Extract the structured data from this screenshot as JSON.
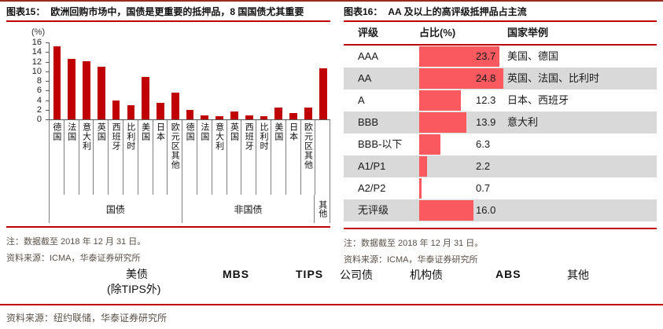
{
  "figure15": {
    "label": "图表15：",
    "title": "欧洲回购市场中，国债是更重要的抵押品，8 国国债尤其重要",
    "unit_label": "(%)",
    "note": "注：数据截至 2018 年 12 月 31 日。",
    "source": "资料来源：ICMA，华泰证券研究所"
  },
  "figure16": {
    "label": "图表16：",
    "title": "AA 及以上的高评级抵押品占主流",
    "headers": [
      "评级",
      "占比(%)",
      "国家举例"
    ],
    "note": "注：数据截至 2018 年 12 月 31 日。",
    "source": "资料来源：ICMA，华泰证券研究所"
  },
  "bottom_figure": {
    "axis_labels": [
      "美债",
      "(除TIPS外)",
      "MBS",
      "TIPS",
      "公司债",
      "机构债",
      "ABS",
      "其他"
    ],
    "source": "资料来源：纽约联储，华泰证券研究所"
  },
  "colors": {
    "accent_red": "#c00000",
    "left_bar": "#c00000",
    "table_bar": "#fa5a5f",
    "alt_row": "#d9d9d9"
  },
  "chart_data": [
    {
      "type": "bar",
      "title": "欧洲回购市场中，国债是更重要的抵押品，8国国债尤其重要",
      "ylabel": "(%)",
      "ylim": [
        0,
        16
      ],
      "ytick_step": 2,
      "grid": false,
      "bar_color": "#c00000",
      "groups": [
        {
          "label": "国债",
          "categories": [
            "德国",
            "法国",
            "意大利",
            "英国",
            "西班牙",
            "比利时",
            "美国",
            "日本",
            "欧元区其他"
          ],
          "values": [
            15.2,
            12.6,
            12.1,
            11.0,
            4.0,
            3.0,
            8.8,
            3.4,
            5.5
          ]
        },
        {
          "label": "非国债",
          "categories": [
            "德国",
            "法国",
            "意大利",
            "英国",
            "西班牙",
            "比利时",
            "美国",
            "日本",
            "欧元区其他"
          ],
          "values": [
            1.9,
            0.9,
            0.7,
            1.7,
            0.9,
            0.6,
            2.4,
            1.3,
            2.4
          ]
        },
        {
          "label": "其他",
          "categories": [
            "其他"
          ],
          "values": [
            10.6
          ],
          "vertical_group_label": true,
          "hide_category_labels": true
        }
      ]
    },
    {
      "type": "bar",
      "title": "AA及以上的高评级抵押品占主流",
      "orientation": "horizontal",
      "xlim": [
        0,
        25
      ],
      "bar_color": "#fa5a5f",
      "categories": [
        "AAA",
        "AA",
        "A",
        "BBB",
        "BBB-以下",
        "A1/P1",
        "A2/P2",
        "无评级"
      ],
      "values": [
        23.7,
        24.8,
        12.3,
        13.9,
        6.3,
        2.2,
        0.7,
        16.0
      ],
      "value_labels": [
        "23.7",
        "24.8",
        "12.3",
        "13.9",
        "6.3",
        "2.2",
        "0.7",
        "16.0"
      ],
      "examples": [
        "美国、德国",
        "英国、法国、比利时",
        "日本、西班牙",
        "意大利",
        "",
        "",
        "",
        ""
      ]
    }
  ]
}
